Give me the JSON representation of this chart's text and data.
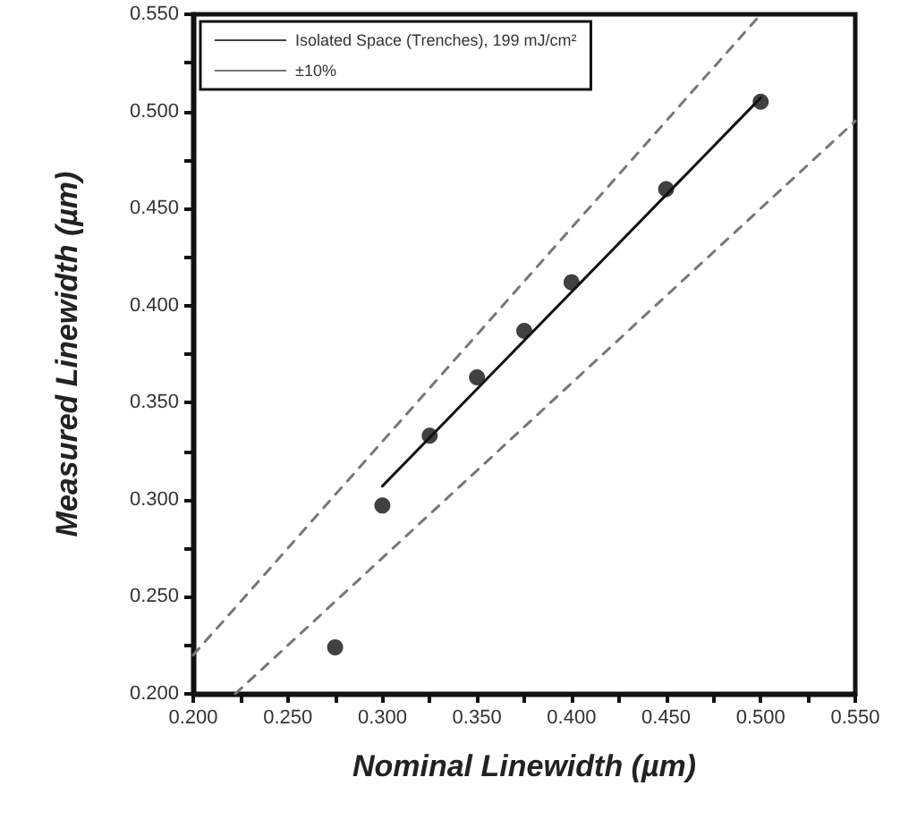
{
  "chart_data": {
    "type": "scatter",
    "xlabel": "Nominal Linewidth (µm)",
    "ylabel": "Measured Linewidth (µm)",
    "series": [
      {
        "name": "Isolated Space (Trenches), 199 mJ/cm²",
        "marker": "circle",
        "color": "#111111",
        "x": [
          0.275,
          0.3,
          0.325,
          0.35,
          0.375,
          0.4,
          0.45,
          0.5
        ],
        "values": [
          0.224,
          0.297,
          0.333,
          0.363,
          0.387,
          0.412,
          0.46,
          0.505
        ]
      },
      {
        "type": "line",
        "color": "#111111",
        "x": [
          0.3,
          0.5
        ],
        "values": [
          0.307,
          0.507
        ],
        "line_style": "solid"
      },
      {
        "name": "±10%",
        "type": "line",
        "color": "#777777",
        "x": [
          0.2,
          0.5
        ],
        "values": [
          0.22,
          0.55
        ],
        "line_style": "dashed"
      },
      {
        "type": "line",
        "color": "#777777",
        "x": [
          0.2222,
          0.55
        ],
        "values": [
          0.2,
          0.495
        ],
        "line_style": "dashed"
      }
    ],
    "xlim": [
      0.2,
      0.55
    ],
    "ylim": [
      0.2,
      0.55
    ],
    "xticks": [
      {
        "value": 0.2,
        "label": "0.200"
      },
      {
        "value": 0.225,
        "label": null
      },
      {
        "value": 0.25,
        "label": "0.250"
      },
      {
        "value": 0.275,
        "label": null
      },
      {
        "value": 0.3,
        "label": "0.300"
      },
      {
        "value": 0.325,
        "label": null
      },
      {
        "value": 0.35,
        "label": "0.350"
      },
      {
        "value": 0.375,
        "label": null
      },
      {
        "value": 0.4,
        "label": "0.400"
      },
      {
        "value": 0.425,
        "label": null
      },
      {
        "value": 0.45,
        "label": "0.450"
      },
      {
        "value": 0.475,
        "label": null
      },
      {
        "value": 0.5,
        "label": "0.500"
      },
      {
        "value": 0.525,
        "label": null
      },
      {
        "value": 0.55,
        "label": "0.550"
      }
    ],
    "yticks": [
      {
        "value": 0.2,
        "label": "0.200"
      },
      {
        "value": 0.225,
        "label": null
      },
      {
        "value": 0.25,
        "label": "0.250"
      },
      {
        "value": 0.275,
        "label": null
      },
      {
        "value": 0.3,
        "label": "0.300"
      },
      {
        "value": 0.325,
        "label": null
      },
      {
        "value": 0.35,
        "label": "0.350"
      },
      {
        "value": 0.375,
        "label": null
      },
      {
        "value": 0.4,
        "label": "0.400"
      },
      {
        "value": 0.425,
        "label": null
      },
      {
        "value": 0.45,
        "label": "0.450"
      },
      {
        "value": 0.475,
        "label": null
      },
      {
        "value": 0.5,
        "label": "0.500"
      },
      {
        "value": 0.525,
        "label": null
      },
      {
        "value": 0.55,
        "label": "0.550"
      }
    ],
    "grid": false,
    "legend": "top left"
  }
}
